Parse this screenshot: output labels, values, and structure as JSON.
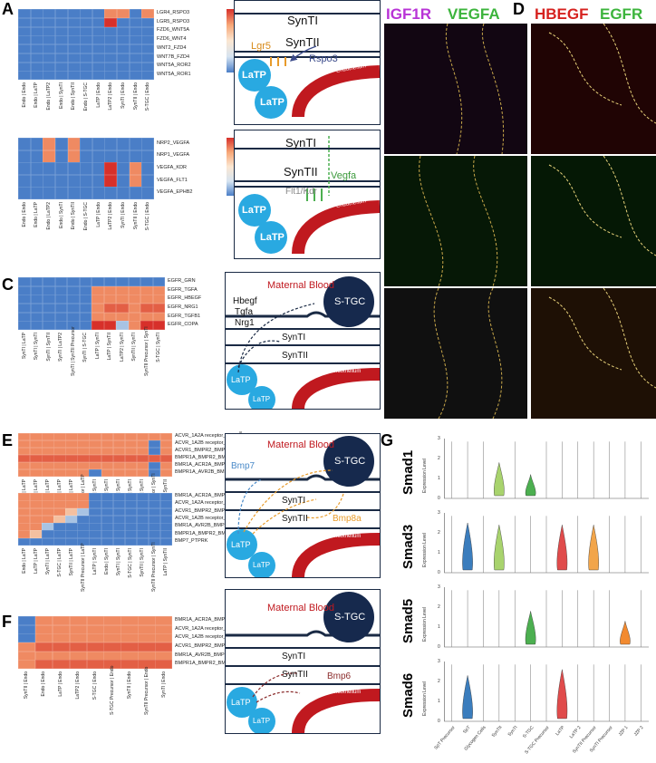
{
  "panels": {
    "A": "A",
    "B": "B",
    "C": "C",
    "D": "D",
    "E": "E",
    "F": "F",
    "G": "G"
  },
  "heatmaps": [
    {
      "id": "hmA1",
      "rows": [
        "LGR4_RSPO3",
        "LGR5_RSPO3",
        "FZD6_WNT5A",
        "FZD6_WNT4",
        "WNT2_FZD4",
        "WNT7B_FZD4",
        "WNT5A_ROR2",
        "WNT5A_ROR1"
      ],
      "cols": [
        "Endo | Endo",
        "Endo | LaTP",
        "Endo | LaTP2",
        "Endo | SynTI",
        "Endo | SynTII",
        "Endo | S-TGC",
        "LaTP | Endo",
        "LaTP2 | Endo",
        "SynTI | Endo",
        "SynTII | Endo",
        "S-TGC | Endo"
      ],
      "cells": [
        [
          0,
          0,
          0,
          0,
          0,
          0,
          0,
          8,
          8,
          0,
          8
        ],
        [
          0,
          0,
          0,
          0,
          0,
          0,
          0,
          10,
          0,
          0,
          0
        ],
        [
          0,
          0,
          0,
          0,
          0,
          0,
          0,
          0,
          0,
          0,
          0
        ],
        [
          0,
          0,
          0,
          0,
          0,
          0,
          0,
          0,
          0,
          0,
          0
        ],
        [
          0,
          0,
          0,
          0,
          0,
          0,
          0,
          0,
          0,
          0,
          0
        ],
        [
          0,
          0,
          0,
          0,
          0,
          0,
          0,
          0,
          0,
          0,
          0
        ],
        [
          0,
          0,
          0,
          0,
          0,
          0,
          0,
          0,
          0,
          0,
          0
        ],
        [
          0,
          0,
          0,
          0,
          0,
          0,
          0,
          0,
          0,
          0,
          0
        ]
      ],
      "ticks": [
        "8",
        "6",
        "4",
        "2",
        "0"
      ]
    },
    {
      "id": "hmA2",
      "rows": [
        "NRP2_VEGFA",
        "NRP1_VEGFA",
        "VEGFA_KDR",
        "VEGFA_FLT1",
        "VEGFA_EPHB2"
      ],
      "cols": [
        "Endo | Endo",
        "Endo | LaTP",
        "Endo | LaTP2",
        "Endo | SynTI",
        "Endo | SynTII",
        "Endo | S-TGC",
        "LaTP | Endo",
        "LaTP2 | Endo",
        "SynTI | Endo",
        "SynTII | Endo",
        "S-TGC | Endo"
      ],
      "cells": [
        [
          0,
          0,
          8,
          0,
          8,
          0,
          0,
          0,
          0,
          0,
          0
        ],
        [
          0,
          0,
          8,
          0,
          8,
          0,
          0,
          0,
          0,
          0,
          0
        ],
        [
          0,
          0,
          0,
          0,
          0,
          0,
          0,
          10,
          0,
          8,
          0
        ],
        [
          0,
          0,
          0,
          0,
          0,
          0,
          0,
          10,
          0,
          8,
          0
        ],
        [
          0,
          0,
          0,
          0,
          0,
          0,
          0,
          0,
          0,
          0,
          0
        ]
      ],
      "ticks": [
        "10",
        "8",
        "6",
        "4",
        "2",
        "0"
      ]
    },
    {
      "id": "hmC",
      "rows": [
        "EGFR_GRN",
        "EGFR_TGFA",
        "EGFR_HBEGF",
        "EGFR_NRG1",
        "EGFR_TGFB1",
        "EGFR_COPA"
      ],
      "cols": [
        "SynTI | LaTP",
        "SynTI | SynTI",
        "SynTI | SynTII",
        "SynTI | LaTP2",
        "SynTI | SynTII Precursor",
        "SynTI | S-TGC",
        "LaTP | SynTI",
        "LaTP | SynTII",
        "LaTP2 | SynTI",
        "SynTII | SynTI",
        "SynTII Precursor | SynTI",
        "S-TGC | SynTI"
      ],
      "cells": [
        [
          0,
          0,
          0,
          0,
          0,
          0,
          0,
          0,
          0,
          0,
          0,
          0
        ],
        [
          0,
          0,
          0,
          0,
          0,
          0,
          8,
          8,
          8,
          8,
          8,
          8
        ],
        [
          0,
          0,
          0,
          0,
          0,
          0,
          8,
          8,
          8,
          8,
          8,
          8
        ],
        [
          0,
          0,
          0,
          0,
          0,
          0,
          8,
          9,
          9,
          8,
          9,
          9
        ],
        [
          0,
          0,
          0,
          0,
          0,
          0,
          8,
          8,
          8,
          8,
          8,
          8
        ],
        [
          0,
          0,
          0,
          0,
          0,
          0,
          10,
          10,
          3,
          8,
          10,
          10
        ]
      ],
      "ticks": [
        "8",
        "6",
        "4",
        "2",
        "0"
      ]
    },
    {
      "id": "hmE1",
      "rows": [
        "ACVR_1A2A receptor_BMP8A",
        "ACVR_1A2B receptor_BMP8A",
        "ACVR1_BMPR2_BMP8A",
        "BMPR1A_BMPR2_BMP8A",
        "BMR1A_ACR2A_BMP8A",
        "BMPR1A_AVR2B_BMP8A"
      ],
      "cols": [
        "Endo | LaTP",
        "LaTP | LaTP",
        "SynTI | LaTP",
        "S-TGC | LaTP",
        "SynTII | LaTP",
        "SynTII Precursor | LaTP",
        "LaTP | SynTI",
        "Endo | SynTI",
        "SynTI | SynTI",
        "S-TGC | SynTI",
        "SynTII | SynTI",
        "SynTII Precursor | SynTI",
        "LaTP | SynTII"
      ],
      "cells": [
        [
          8,
          8,
          8,
          8,
          8,
          8,
          8,
          8,
          8,
          8,
          8,
          8,
          8
        ],
        [
          8,
          8,
          8,
          8,
          8,
          8,
          8,
          8,
          8,
          8,
          8,
          0,
          8
        ],
        [
          8,
          8,
          8,
          8,
          8,
          8,
          8,
          8,
          8,
          8,
          8,
          0,
          8
        ],
        [
          9,
          9,
          9,
          9,
          9,
          9,
          9,
          9,
          9,
          9,
          9,
          9,
          9
        ],
        [
          8,
          8,
          8,
          8,
          8,
          8,
          8,
          8,
          8,
          8,
          8,
          0,
          8
        ],
        [
          8,
          8,
          8,
          8,
          8,
          8,
          0,
          8,
          8,
          8,
          8,
          0,
          8
        ]
      ],
      "ticks": [
        "8",
        "6",
        "4",
        "2",
        "0"
      ]
    },
    {
      "id": "hmE2",
      "rows": [
        "BMR1A_ACR2A_BMP7",
        "ACVR_1A2A receptor_BMP7",
        "ACVR1_BMPR2_BMP7",
        "ACVR_1A2B receptor_BMP7",
        "BMR1A_AVR2B_BMP7",
        "BMPR1A_BMPR2_BMP7",
        "BMP7_PTPRK"
      ],
      "cols": [
        "Endo | LaTP",
        "LaTP | LaTP",
        "SynTI | LaTP",
        "S-TGC | LaTP",
        "SynTII | LaTP",
        "SynTII Precursor | LaTP",
        "LaTP | SynTI",
        "Endo | SynTI",
        "SynTI | SynTI",
        "S-TGC | SynTI",
        "SynTII | SynTI",
        "SynTII Precursor | SynTI",
        "LaTP | SynTII"
      ],
      "cells": [
        [
          8,
          8,
          8,
          8,
          8,
          8,
          0,
          0,
          0,
          0,
          0,
          0,
          0
        ],
        [
          8,
          8,
          8,
          8,
          8,
          8,
          0,
          0,
          0,
          0,
          0,
          0,
          0
        ],
        [
          8,
          8,
          8,
          8,
          6,
          3,
          0,
          0,
          0,
          0,
          0,
          0,
          0
        ],
        [
          8,
          8,
          8,
          6,
          3,
          0,
          0,
          0,
          0,
          0,
          0,
          0,
          0
        ],
        [
          8,
          8,
          3,
          0,
          0,
          0,
          0,
          0,
          0,
          0,
          0,
          0,
          0
        ],
        [
          8,
          6,
          0,
          0,
          0,
          0,
          0,
          0,
          0,
          0,
          0,
          0,
          0
        ],
        [
          0,
          0,
          0,
          0,
          0,
          0,
          0,
          0,
          0,
          0,
          0,
          0,
          0
        ]
      ],
      "ticks": [
        "8",
        "6",
        "4",
        "2",
        "0"
      ]
    },
    {
      "id": "hmF",
      "rows": [
        "BMR1A_ACR2A_BMP6",
        "ACVR_1A2A receptor_BMP6",
        "ACVR_1A2B receptor_BMP6",
        "ACVR1_BMPR2_BMP6",
        "BMR1A_AVR2B_BMP6",
        "BMPR1A_BMPR2_BMP6"
      ],
      "cols": [
        "SynTII | Endo",
        "Endo | Endo",
        "LaTP | Endo",
        "LaTP2 | Endo",
        "S-TGC | Endo",
        "S-TGC Precursor | Endo",
        "SynTII | Endo",
        "SynTII Precursor | Endo",
        "SynTI | Endo"
      ],
      "cells": [
        [
          0,
          8,
          8,
          8,
          8,
          8,
          8,
          8,
          8
        ],
        [
          0,
          8,
          8,
          8,
          8,
          8,
          8,
          8,
          8
        ],
        [
          0,
          8,
          8,
          8,
          8,
          8,
          8,
          8,
          8
        ],
        [
          8,
          9,
          9,
          9,
          9,
          9,
          9,
          9,
          9
        ],
        [
          8,
          8,
          8,
          8,
          8,
          8,
          8,
          8,
          8
        ],
        [
          8,
          9,
          9,
          9,
          9,
          9,
          9,
          9,
          9
        ]
      ],
      "ticks": [
        "10",
        "8",
        "6",
        "4",
        "2",
        "0"
      ]
    }
  ],
  "diagrams": {
    "A1": {
      "synti": "SynTI",
      "syntii": "SynTII",
      "latp1": "LaTP",
      "latp2": "LaTP",
      "lig": "Lgr5",
      "rec": "Rspo3",
      "endo": "Endothelium"
    },
    "A2": {
      "synti": "SynTI",
      "syntii": "SynTII",
      "latp1": "LaTP",
      "latp2": "LaTP",
      "lig": "Vegfa",
      "rec": "Flt1/Kdr",
      "endo": "Endothelium"
    },
    "C": {
      "blood": "Maternal Blood",
      "stgc": "S-TGC",
      "synti": "SynTI",
      "syntii": "SynTII",
      "latp1": "LaTP",
      "latp2": "LaTP",
      "l1": "Hbegf",
      "l2": "Tgfa",
      "l3": "Nrg1",
      "endo": "Endothelium"
    },
    "E": {
      "blood": "Maternal Blood",
      "stgc": "S-TGC",
      "synti": "SynTI",
      "syntii": "SynTII",
      "latp1": "LaTP",
      "latp2": "LaTP",
      "l1": "Bmp7",
      "l2": "Bmp8a",
      "endo": "Endothelium"
    },
    "F": {
      "blood": "Maternal Blood",
      "stgc": "S-TGC",
      "synti": "SynTI",
      "syntii": "SynTII",
      "latp1": "LaTP",
      "latp2": "LaTP",
      "l1": "Bmp6",
      "endo": "Endothelium"
    }
  },
  "micro": {
    "B": {
      "c1": "IGF1R",
      "c2": "VEGFA"
    },
    "D": {
      "c1": "HBEGF",
      "c2": "EGFR"
    }
  },
  "violin": {
    "genes": [
      "Smad1",
      "Smad3",
      "Smad5",
      "Smad6"
    ],
    "ylabel": "Expression Level",
    "ticks": [
      "3",
      "2",
      "1",
      "0"
    ],
    "celltypes": [
      "SpT Precursor",
      "SpT",
      "Glycogen Cells",
      "SynTII",
      "SynTI",
      "S-TGC",
      "S-TGC Precursor",
      "LaTP",
      "LaTP 2",
      "SynTII Precursor",
      "SynTI Precursor",
      "JZP 1",
      "JZP 2"
    ],
    "colors": [
      "#3b7dbd",
      "#3b7dbd",
      "#6fb66e",
      "#a8d36d",
      "#6fb66e",
      "#4caf50",
      "#4caf50",
      "#e04b4b",
      "#e04b4b",
      "#f2a54a",
      "#f28a2f",
      "#f28a2f",
      "#f28a2f"
    ],
    "levels": [
      [
        0,
        0,
        0,
        1.8,
        0,
        1.2,
        0,
        0,
        0,
        0,
        0,
        0,
        0
      ],
      [
        0,
        2.5,
        0,
        2.4,
        0,
        0,
        0,
        2.4,
        0,
        2.4,
        0,
        0,
        0
      ],
      [
        0,
        0,
        0,
        0,
        0,
        1.8,
        0,
        0,
        0,
        0,
        0,
        1.3,
        0
      ],
      [
        0,
        2.3,
        0,
        0,
        0,
        0,
        0,
        2.6,
        0,
        0,
        0,
        0,
        0
      ]
    ]
  }
}
